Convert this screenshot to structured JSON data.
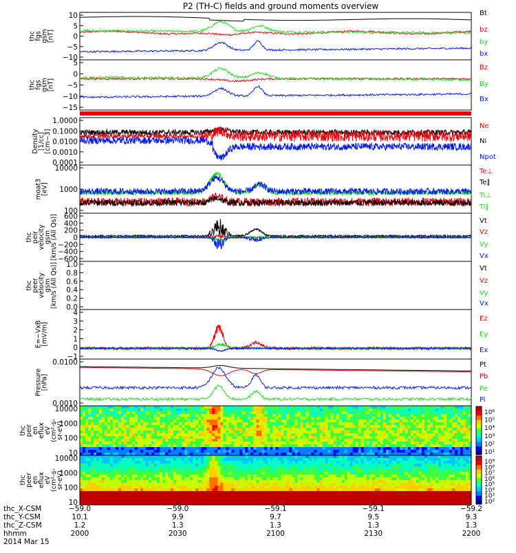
{
  "title": "P2 (TH-C) fields and ground moments overview",
  "colors": {
    "black": "#000000",
    "red": "#e8000b",
    "green": "#1ed81e",
    "blue": "#0018e6"
  },
  "chart_data": [
    {
      "type": "line",
      "ylabel": [
        "thc",
        "fgs",
        "gsm",
        "[nT]"
      ],
      "ytick_labels": [
        "10",
        "5",
        "0",
        "−5",
        "−10"
      ],
      "legend": [
        {
          "label": "Bt",
          "color": "black"
        },
        {
          "label": "bz",
          "color": "red"
        },
        {
          "label": "by",
          "color": "green"
        },
        {
          "label": "bx",
          "color": "blue"
        }
      ]
    },
    {
      "type": "line",
      "ylabel": [
        "thc",
        "fgs",
        "gsm",
        "[nT]"
      ],
      "ytick_labels": [
        "5",
        "0",
        "−5",
        "−10",
        "−15"
      ],
      "legend": [
        {
          "label": "Bz",
          "color": "red"
        },
        {
          "label": "By",
          "color": "green"
        },
        {
          "label": "Bx",
          "color": "blue"
        }
      ]
    },
    {
      "type": "line",
      "ylabel": [
        "Density",
        "[1/cc]",
        "[cm−3]"
      ],
      "ytick_labels": [
        "1.0000",
        "0.1000",
        "0.0100",
        "0.0010",
        "0.0001"
      ],
      "legend": [
        {
          "label": "Ne",
          "color": "red"
        },
        {
          "label": "Ni",
          "color": "black"
        },
        {
          "label": "Npot",
          "color": "blue"
        }
      ]
    },
    {
      "type": "line",
      "ylabel": [
        "moat3",
        "[eV]"
      ],
      "ytick_labels": [
        "10000",
        "1000",
        "100"
      ],
      "legend": [
        {
          "label": "Te⊥",
          "color": "red"
        },
        {
          "label": "Te∥",
          "color": "black"
        },
        {
          "label": "Ti⊥",
          "color": "green"
        },
        {
          "label": "Ti∥",
          "color": "green"
        }
      ]
    },
    {
      "type": "line",
      "ylabel": [
        "thc",
        "peir",
        "velocity",
        "gsm",
        "[km/s (All Qs)]"
      ],
      "ytick_labels": [
        "600",
        "400",
        "200",
        "0",
        "−200",
        "−400",
        "−600"
      ],
      "legend": [
        {
          "label": "Vt",
          "color": "black"
        },
        {
          "label": "Vz",
          "color": "red"
        },
        {
          "label": "Vy",
          "color": "green"
        },
        {
          "label": "Vx",
          "color": "blue"
        }
      ]
    },
    {
      "type": "line",
      "ylabel": [
        "thc",
        "peer",
        "velocity",
        "gsm",
        "[km/s (All Qs)]"
      ],
      "ytick_labels": [
        "1.0",
        "0.8",
        "0.6",
        "0.4",
        "0.2",
        "0.0"
      ],
      "legend": [
        {
          "label": "Vt",
          "color": "black"
        },
        {
          "label": "Vz",
          "color": "red"
        },
        {
          "label": "Vy",
          "color": "green"
        },
        {
          "label": "Vx",
          "color": "blue"
        }
      ]
    },
    {
      "type": "line",
      "ylabel": [
        "E=−VxB",
        "[mV/m]"
      ],
      "ytick_labels": [
        "4",
        "3",
        "2",
        "1",
        "0",
        "−1"
      ],
      "legend": [
        {
          "label": "Ez",
          "color": "red"
        },
        {
          "label": "Ey",
          "color": "green"
        },
        {
          "label": "Ex",
          "color": "blue"
        }
      ]
    },
    {
      "type": "line",
      "ylabel": [
        "Pressure",
        "[nPa]"
      ],
      "ytick_labels": [
        "0.0100",
        "0.0010"
      ],
      "legend": [
        {
          "label": "Pt",
          "color": "black"
        },
        {
          "label": "Pb",
          "color": "red"
        },
        {
          "label": "Pe",
          "color": "green"
        },
        {
          "label": "Pi",
          "color": "blue"
        }
      ]
    },
    {
      "type": "heatmap",
      "ylabel": [
        "thc",
        "peir",
        "en",
        "eflux",
        "eV",
        "(cm²-s-",
        "sr-eV)"
      ],
      "ytick_labels": [
        "10000",
        "1000",
        "100",
        "10"
      ],
      "colorbar_labels": [
        "10⁶",
        "10⁵",
        "10⁴",
        "10³",
        "10²",
        "10¹"
      ]
    },
    {
      "type": "heatmap",
      "ylabel": [
        "thc",
        "peer",
        "en",
        "eflux",
        "eV",
        "(cm²-s-",
        "sr-eV)"
      ],
      "ytick_labels": [
        "10000",
        "1000",
        "100",
        "10"
      ],
      "colorbar_labels": [
        "10⁹",
        "10⁸",
        "10⁷",
        "10⁶",
        "10⁵",
        "10⁴",
        "10³",
        "10²"
      ]
    }
  ],
  "time_axis": {
    "row_labels": [
      "thc_X-CSM",
      "thc_Y-CSM",
      "thc_Z-CSM",
      "hhmm",
      "2014 Mar 15"
    ],
    "ticks": [
      {
        "values": [
          "−59.0",
          "10.1",
          "1.2",
          "2000"
        ]
      },
      {
        "values": [
          "−59.0",
          "9.9",
          "1.3",
          "2030"
        ]
      },
      {
        "values": [
          "−59.1",
          "9.7",
          "1.3",
          "2100"
        ]
      },
      {
        "values": [
          "−59.1",
          "9.5",
          "1.3",
          "2130"
        ]
      },
      {
        "values": [
          "−59.2",
          "9.3",
          "1.3",
          "2200"
        ]
      }
    ]
  }
}
